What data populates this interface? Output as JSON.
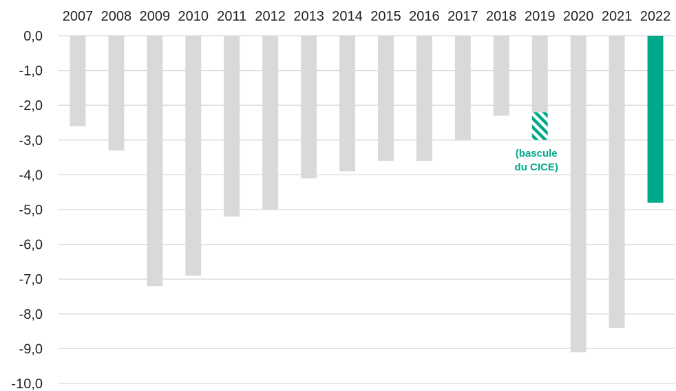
{
  "chart_data": {
    "type": "bar",
    "categories": [
      "2007",
      "2008",
      "2009",
      "2010",
      "2011",
      "2012",
      "2013",
      "2014",
      "2015",
      "2016",
      "2017",
      "2018",
      "2019",
      "2020",
      "2021",
      "2022"
    ],
    "values": [
      -2.6,
      -3.3,
      -7.2,
      -6.9,
      -5.2,
      -5.0,
      -4.1,
      -3.9,
      -3.6,
      -3.6,
      -3.0,
      -2.3,
      -2.2,
      -9.1,
      -8.4,
      -4.8
    ],
    "ylim": [
      -10,
      0
    ],
    "yticks": [
      "0,0",
      "-1,0",
      "-2,0",
      "-3,0",
      "-4,0",
      "-5,0",
      "-6,0",
      "-7,0",
      "-8,0",
      "-9,0",
      "-10,0"
    ],
    "ytick_values": [
      0,
      -1,
      -2,
      -3,
      -4,
      -5,
      -6,
      -7,
      -8,
      -9,
      -10
    ],
    "x_axis_position": "top",
    "grid": true,
    "highlight_category": "2022",
    "hatched_segment": {
      "category": "2019",
      "from": -2.2,
      "to": -3.0
    },
    "annotation": {
      "category": "2019",
      "lines": [
        "(bascule",
        "du CICE)"
      ]
    },
    "colors": {
      "bar": "#d9d9d9",
      "highlight": "#00a88a",
      "grid": "#d9d9d9",
      "text": "#222222"
    }
  }
}
